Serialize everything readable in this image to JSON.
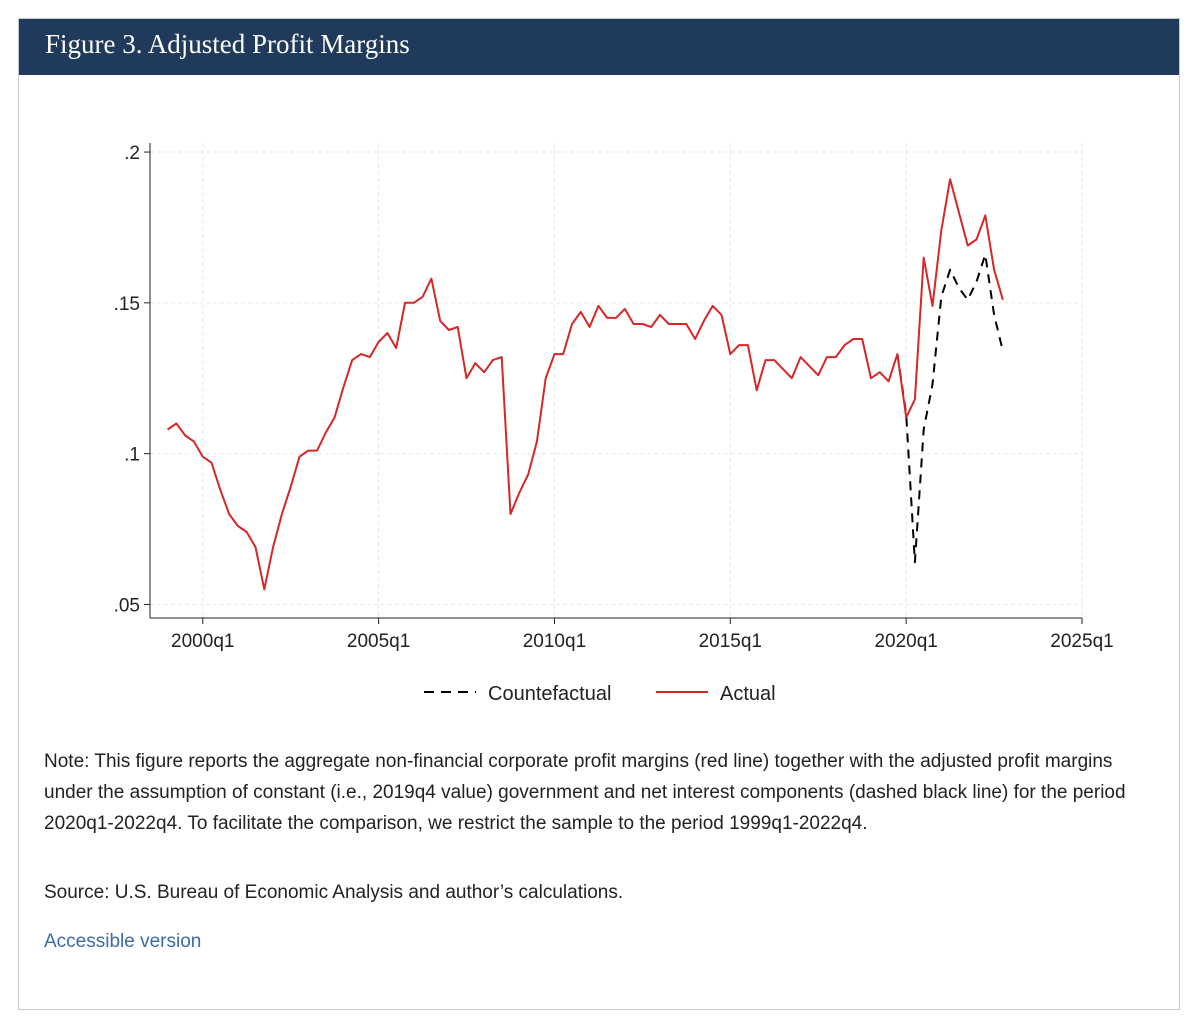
{
  "figure": {
    "title": "Figure 3. Adjusted Profit Margins",
    "note": "Note: This figure reports the aggregate non-financial corporate profit margins (red line) together with the adjusted profit margins under the assumption of constant (i.e., 2019q4 value) government and net interest components (dashed black line) for the period 2020q1-2022q4. To facilitate the comparison, we restrict the sample to the period 1999q1-2022q4.",
    "source": "Source: U.S. Bureau of Economic Analysis and author’s calculations.",
    "accessible_link": "Accessible version"
  },
  "colors": {
    "header_bg": "#1f3a5a",
    "actual": "#d62728",
    "counterfactual": "#000000",
    "link": "#3b6ba3"
  },
  "chart_data": {
    "type": "line",
    "title": "",
    "xlabel": "",
    "ylabel": "",
    "x_start": "1999q1",
    "x_ticks": [
      "2000q1",
      "2005q1",
      "2010q1",
      "2015q1",
      "2020q1",
      "2025q1"
    ],
    "y_ticks": [
      ".05",
      ".1",
      ".15",
      ".2"
    ],
    "xlim": [
      "1998q3",
      "2025q1"
    ],
    "ylim": [
      0.05,
      0.2
    ],
    "grid": true,
    "legend_position": "bottom",
    "series": [
      {
        "name": "Countefactual",
        "style": "dashed",
        "color": "#000000",
        "start": "2019q4",
        "values": [
          0.133,
          0.113,
          0.064,
          0.108,
          0.123,
          0.152,
          0.161,
          0.155,
          0.151,
          0.157,
          0.166,
          0.146,
          0.134
        ]
      },
      {
        "name": "Actual",
        "style": "solid",
        "color": "#d62728",
        "start": "1999q1",
        "values": [
          0.108,
          0.11,
          0.106,
          0.104,
          0.099,
          0.097,
          0.088,
          0.08,
          0.076,
          0.074,
          0.069,
          0.055,
          0.069,
          0.08,
          0.089,
          0.099,
          0.101,
          0.101,
          0.107,
          0.112,
          0.122,
          0.131,
          0.133,
          0.132,
          0.137,
          0.14,
          0.135,
          0.15,
          0.15,
          0.152,
          0.158,
          0.144,
          0.141,
          0.142,
          0.125,
          0.13,
          0.127,
          0.131,
          0.132,
          0.08,
          0.087,
          0.093,
          0.104,
          0.125,
          0.133,
          0.133,
          0.143,
          0.147,
          0.142,
          0.149,
          0.145,
          0.145,
          0.148,
          0.143,
          0.143,
          0.142,
          0.146,
          0.143,
          0.143,
          0.143,
          0.138,
          0.144,
          0.149,
          0.146,
          0.133,
          0.136,
          0.136,
          0.121,
          0.131,
          0.131,
          0.128,
          0.125,
          0.132,
          0.129,
          0.126,
          0.132,
          0.132,
          0.136,
          0.138,
          0.138,
          0.125,
          0.127,
          0.124,
          0.133,
          0.112,
          0.118,
          0.165,
          0.149,
          0.174,
          0.191,
          0.18,
          0.169,
          0.171,
          0.179,
          0.161,
          0.151
        ]
      }
    ]
  }
}
